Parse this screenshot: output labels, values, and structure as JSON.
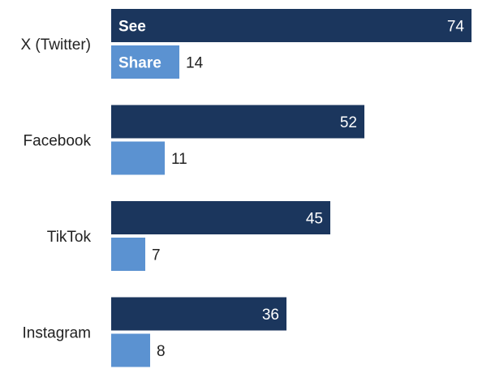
{
  "chart_data": {
    "type": "bar",
    "orientation": "horizontal",
    "categories": [
      "X (Twitter)",
      "Facebook",
      "TikTok",
      "Instagram"
    ],
    "series": [
      {
        "name": "See",
        "values": [
          74,
          52,
          45,
          36
        ],
        "color": "#1b365d"
      },
      {
        "name": "Share",
        "values": [
          14,
          11,
          7,
          8
        ],
        "color": "#5b92d1"
      }
    ],
    "xlim": [
      0,
      76
    ],
    "grid": false,
    "legend": "in-bar labels on first category"
  }
}
